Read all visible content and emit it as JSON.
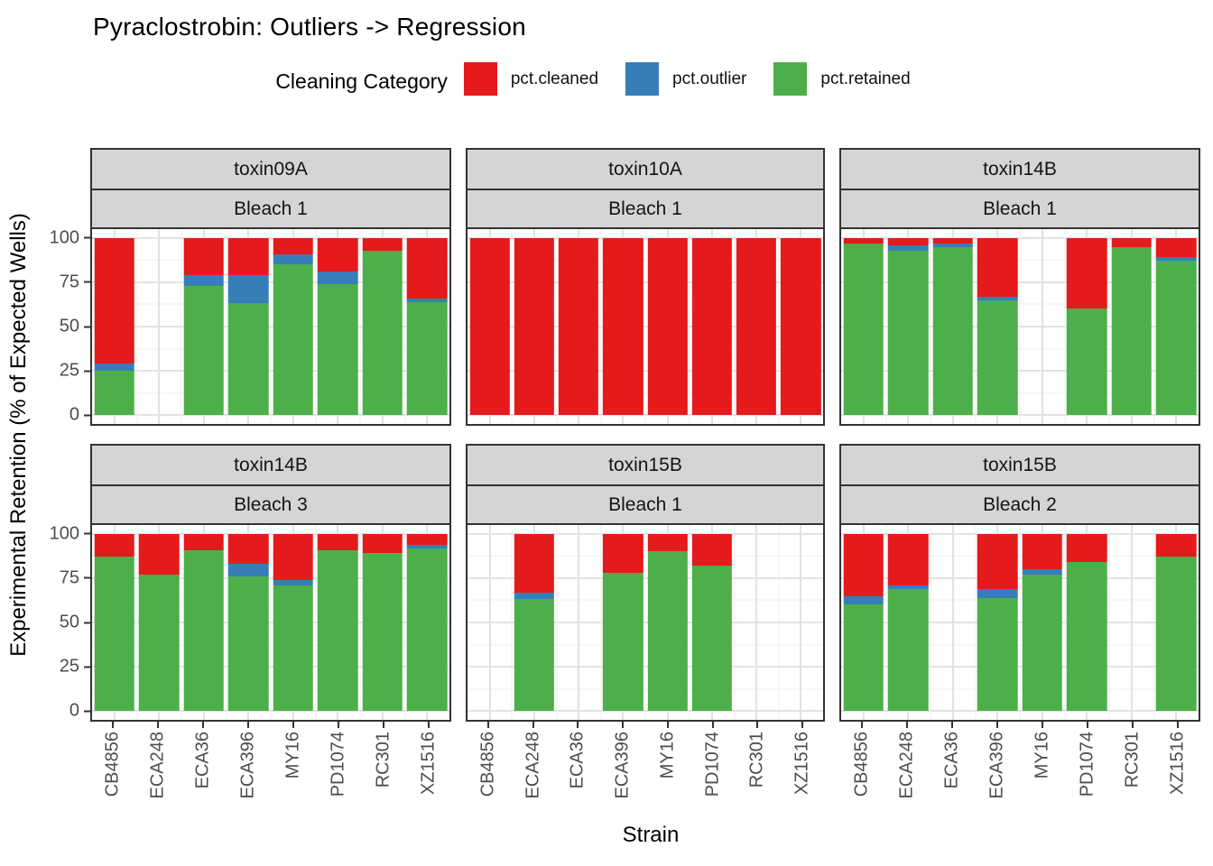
{
  "figure": {
    "title": "Pyraclostrobin: Outliers -> Regression",
    "x_axis_label": "Strain",
    "y_axis_label": "Experimental Retention (% of Expected Wells)"
  },
  "chart_data": {
    "type": "bar",
    "stacked": true,
    "orientation": "vertical",
    "title": "Pyraclostrobin: Outliers -> Regression",
    "xlabel": "Strain",
    "ylabel": "Experimental Retention (% of Expected Wells)",
    "ylim": [
      0,
      100
    ],
    "yticks": [
      0,
      25,
      50,
      75,
      100
    ],
    "grid": true,
    "categories": [
      "CB4856",
      "ECA248",
      "ECA36",
      "ECA396",
      "MY16",
      "PD1074",
      "RC301",
      "XZ1516"
    ],
    "legend": {
      "title": "Cleaning Category",
      "position": "top",
      "entries": [
        {
          "label": "pct.cleaned",
          "color": "#E41A1C"
        },
        {
          "label": "pct.outlier",
          "color": "#377EB8"
        },
        {
          "label": "pct.retained",
          "color": "#4DAF4A"
        }
      ]
    },
    "stack_order_bottom_to_top": [
      "pct.retained",
      "pct.outlier",
      "pct.cleaned"
    ],
    "facet_rows": [
      [
        {
          "toxin": "toxin09A",
          "bleach": "Bleach 1",
          "series": {
            "pct.retained": [
              25,
              null,
              73,
              63,
              85,
              74,
              93,
              64
            ],
            "pct.outlier": [
              4,
              null,
              6,
              16,
              6,
              7,
              0,
              2
            ],
            "pct.cleaned": [
              71,
              null,
              21,
              21,
              9,
              19,
              7,
              34
            ]
          }
        },
        {
          "toxin": "toxin10A",
          "bleach": "Bleach 1",
          "series": {
            "pct.retained": [
              0,
              0,
              0,
              0,
              0,
              0,
              0,
              0
            ],
            "pct.outlier": [
              0,
              0,
              0,
              0,
              0,
              0,
              0,
              0
            ],
            "pct.cleaned": [
              100,
              100,
              100,
              100,
              100,
              100,
              100,
              100
            ]
          }
        },
        {
          "toxin": "toxin14B",
          "bleach": "Bleach 1",
          "series": {
            "pct.retained": [
              97,
              93,
              95,
              65,
              null,
              60,
              95,
              87
            ],
            "pct.outlier": [
              0,
              3,
              2,
              2,
              null,
              0,
              0,
              2
            ],
            "pct.cleaned": [
              3,
              4,
              3,
              33,
              null,
              40,
              5,
              11
            ]
          }
        }
      ],
      [
        {
          "toxin": "toxin14B",
          "bleach": "Bleach 3",
          "series": {
            "pct.retained": [
              87,
              77,
              91,
              76,
              71,
              91,
              89,
              92
            ],
            "pct.outlier": [
              0,
              0,
              0,
              7,
              3,
              0,
              0,
              2
            ],
            "pct.cleaned": [
              13,
              23,
              9,
              17,
              26,
              9,
              11,
              6
            ]
          }
        },
        {
          "toxin": "toxin15B",
          "bleach": "Bleach 1",
          "series": {
            "pct.retained": [
              null,
              63,
              null,
              78,
              90,
              82,
              null,
              null
            ],
            "pct.outlier": [
              null,
              4,
              null,
              0,
              0,
              0,
              null,
              null
            ],
            "pct.cleaned": [
              null,
              33,
              null,
              22,
              10,
              18,
              null,
              null
            ]
          }
        },
        {
          "toxin": "toxin15B",
          "bleach": "Bleach 2",
          "series": {
            "pct.retained": [
              60,
              69,
              null,
              64,
              77,
              84,
              null,
              87
            ],
            "pct.outlier": [
              5,
              2,
              null,
              5,
              3,
              0,
              null,
              0
            ],
            "pct.cleaned": [
              35,
              29,
              null,
              31,
              20,
              16,
              null,
              13
            ]
          }
        }
      ]
    ]
  }
}
